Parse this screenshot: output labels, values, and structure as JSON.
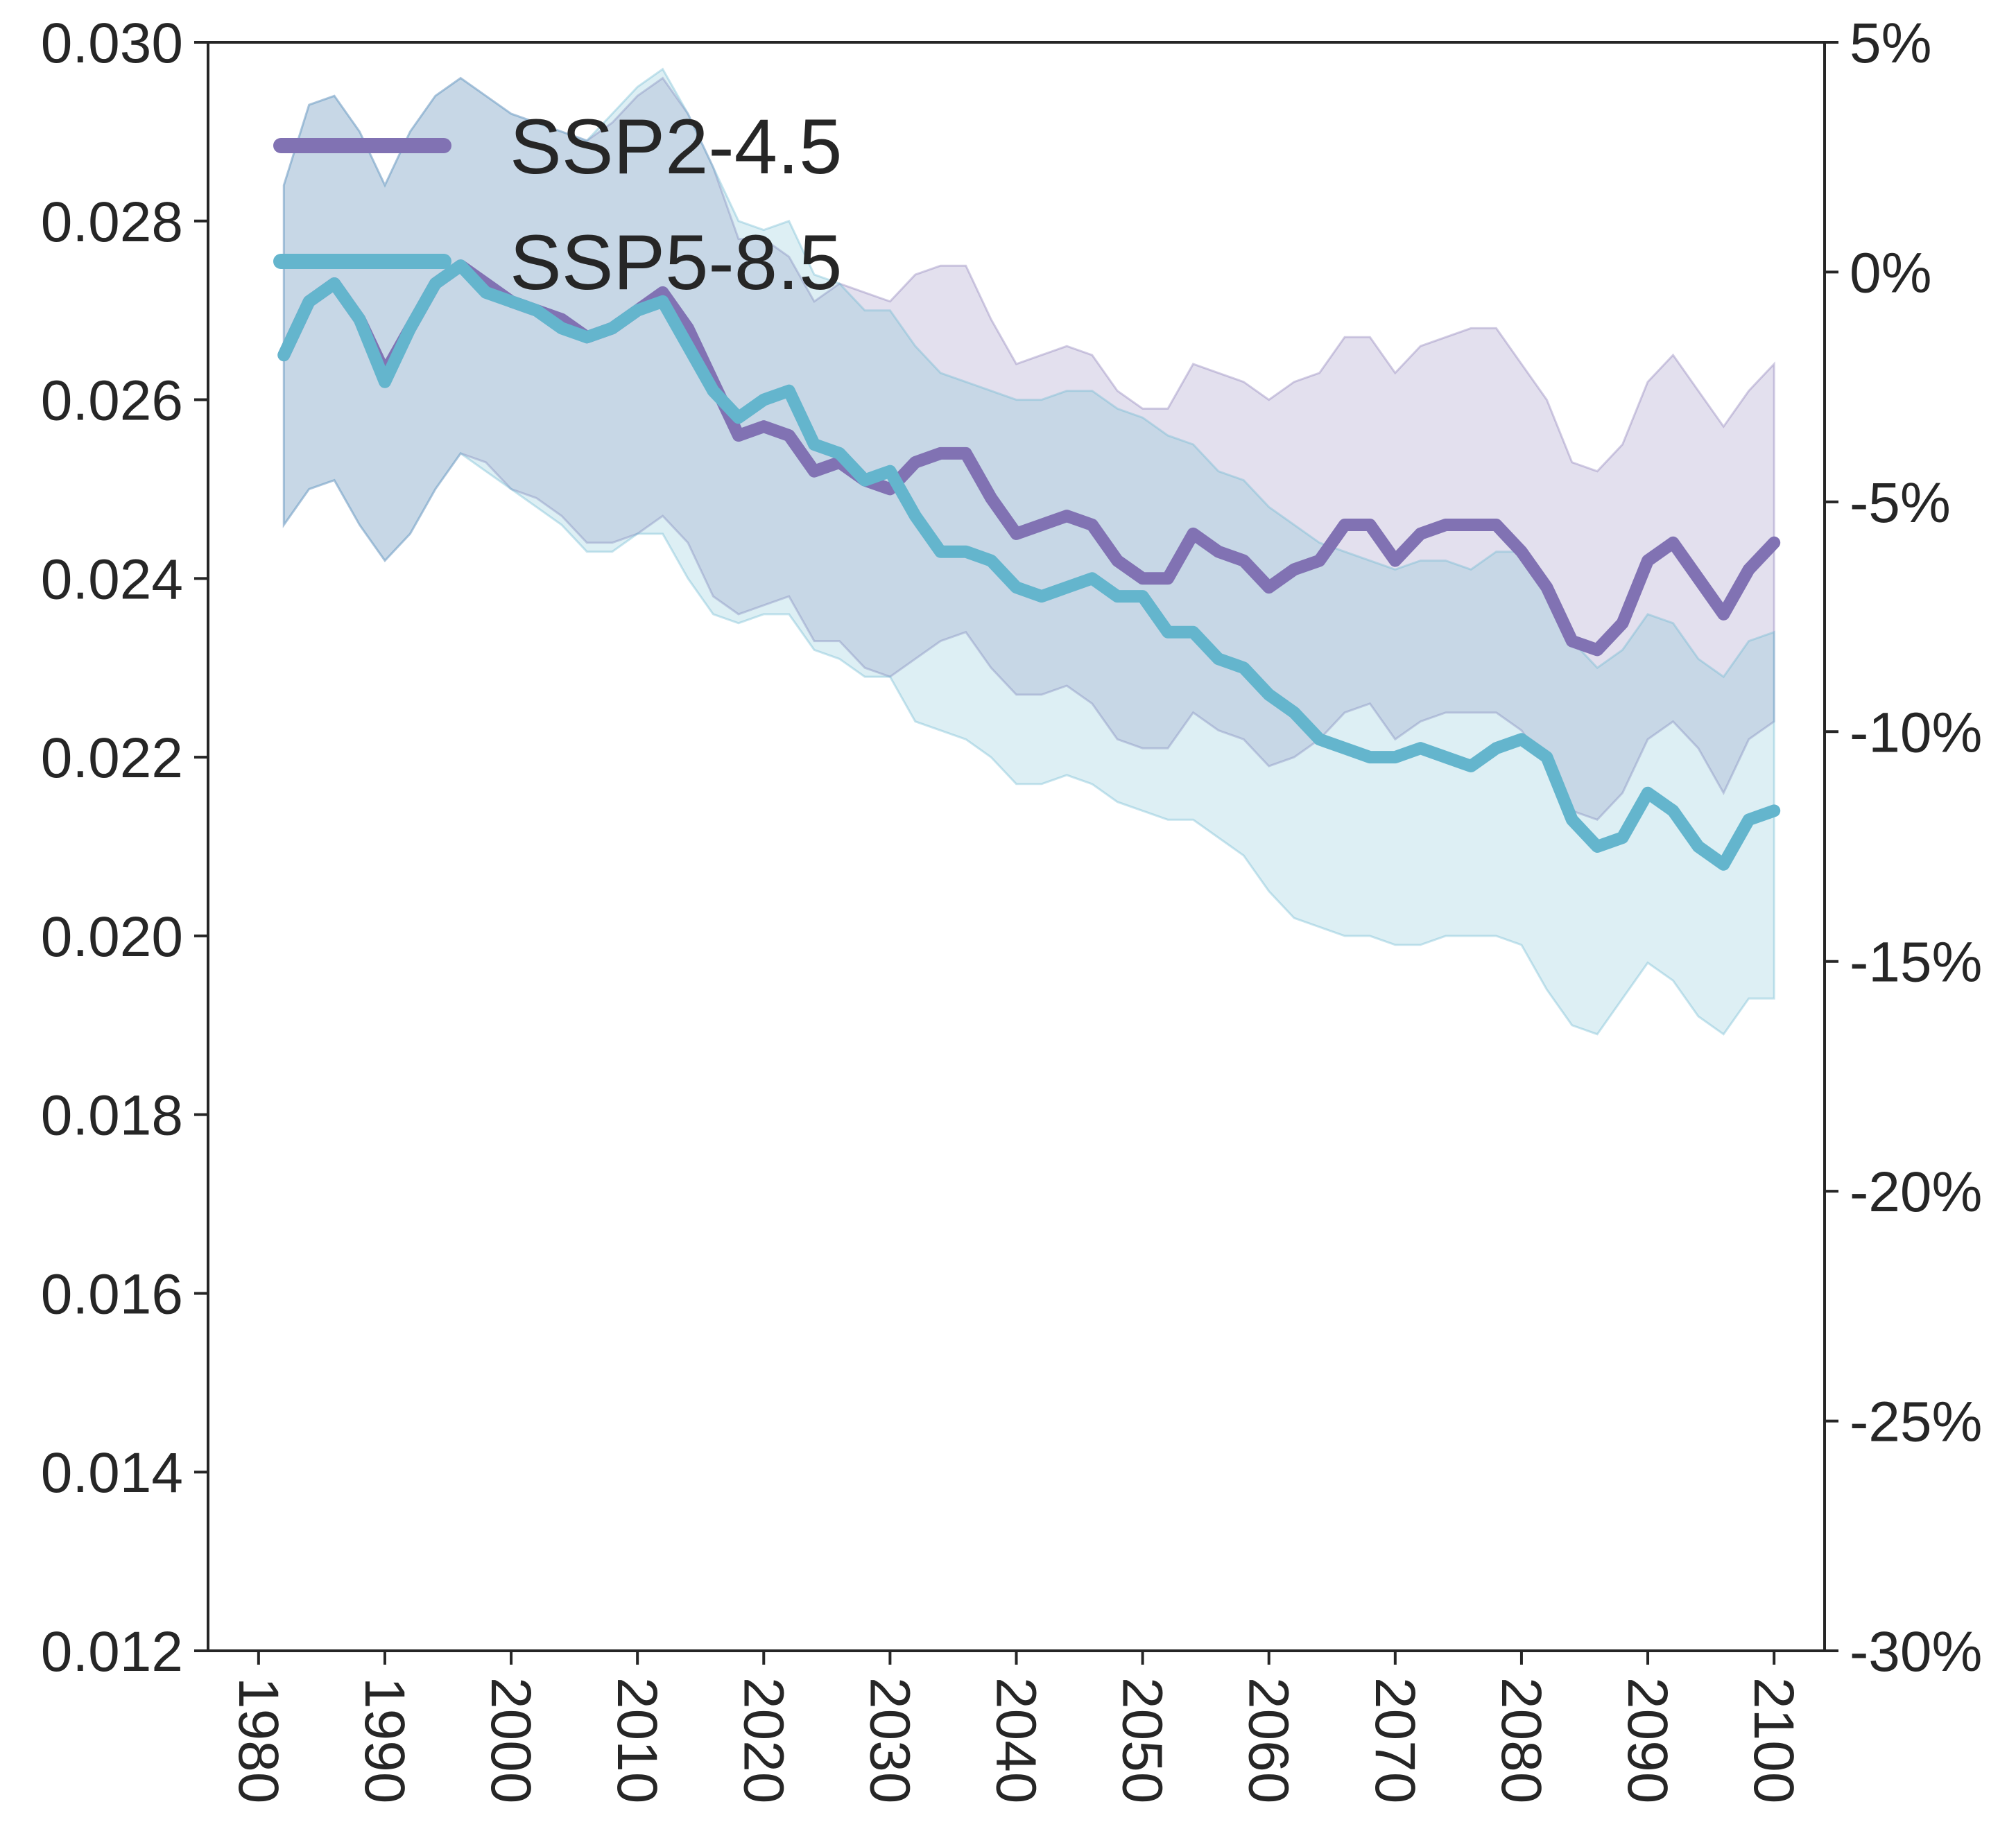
{
  "chart_data": {
    "type": "line",
    "xlim": [
      1976,
      2104
    ],
    "ylim": [
      0.012,
      0.03
    ],
    "y2lim": [
      -30,
      5
    ],
    "grid": false,
    "legend": "top-left",
    "x_ticks": [
      1980,
      1990,
      2000,
      2010,
      2020,
      2030,
      2040,
      2050,
      2060,
      2070,
      2080,
      2090,
      2100
    ],
    "x_tick_labels": [
      "1980",
      "1990",
      "2000",
      "2010",
      "2020",
      "2030",
      "2040",
      "2050",
      "2060",
      "2070",
      "2080",
      "2090",
      "2100"
    ],
    "y_ticks": [
      0.012,
      0.014,
      0.016,
      0.018,
      0.02,
      0.022,
      0.024,
      0.026,
      0.028,
      0.03
    ],
    "y_tick_labels": [
      "0.012",
      "0.014",
      "0.016",
      "0.018",
      "0.020",
      "0.022",
      "0.024",
      "0.026",
      "0.028",
      "0.030"
    ],
    "y2_ticks": [
      -30,
      -25,
      -20,
      -15,
      -10,
      -5,
      0,
      5
    ],
    "y2_tick_labels": [
      "-30%",
      "-25%",
      "-20%",
      "-15%",
      "-10%",
      "-5%",
      "0%",
      "5%"
    ],
    "series": [
      {
        "name": "SSP2-4.5",
        "color": "#8172b3",
        "x": [
          1982,
          1984,
          1986,
          1988,
          1990,
          1992,
          1994,
          1996,
          1998,
          2000,
          2002,
          2004,
          2006,
          2008,
          2010,
          2012,
          2014,
          2016,
          2018,
          2020,
          2022,
          2024,
          2026,
          2028,
          2030,
          2032,
          2034,
          2036,
          2038,
          2040,
          2042,
          2044,
          2046,
          2048,
          2050,
          2052,
          2054,
          2056,
          2058,
          2060,
          2062,
          2064,
          2066,
          2068,
          2070,
          2072,
          2074,
          2076,
          2078,
          2080,
          2082,
          2084,
          2086,
          2088,
          2090,
          2092,
          2094,
          2096,
          2098,
          2100
        ],
        "values": [
          0.0265,
          0.0271,
          0.0273,
          0.0269,
          0.0263,
          0.0268,
          0.0273,
          0.0275,
          0.0273,
          0.0271,
          0.027,
          0.0269,
          0.0267,
          0.0268,
          0.027,
          0.0272,
          0.0268,
          0.0262,
          0.0256,
          0.0257,
          0.0256,
          0.0252,
          0.0253,
          0.0251,
          0.025,
          0.0253,
          0.0254,
          0.0254,
          0.0249,
          0.0245,
          0.0246,
          0.0247,
          0.0246,
          0.0242,
          0.024,
          0.024,
          0.0245,
          0.0243,
          0.0242,
          0.0239,
          0.0241,
          0.0242,
          0.0246,
          0.0246,
          0.0242,
          0.0245,
          0.0246,
          0.0246,
          0.0246,
          0.0243,
          0.0239,
          0.0233,
          0.0232,
          0.0235,
          0.0242,
          0.0244,
          0.024,
          0.0236,
          0.0241,
          0.0244
        ],
        "lower": [
          0.0246,
          0.025,
          0.0251,
          0.0246,
          0.0242,
          0.0245,
          0.025,
          0.0254,
          0.0253,
          0.025,
          0.0249,
          0.0247,
          0.0244,
          0.0244,
          0.0245,
          0.0247,
          0.0244,
          0.0238,
          0.0236,
          0.0237,
          0.0238,
          0.0233,
          0.0233,
          0.023,
          0.0229,
          0.0231,
          0.0233,
          0.0234,
          0.023,
          0.0227,
          0.0227,
          0.0228,
          0.0226,
          0.0222,
          0.0221,
          0.0221,
          0.0225,
          0.0223,
          0.0222,
          0.0219,
          0.022,
          0.0222,
          0.0225,
          0.0226,
          0.0222,
          0.0224,
          0.0225,
          0.0225,
          0.0225,
          0.0223,
          0.0219,
          0.0214,
          0.0213,
          0.0216,
          0.0222,
          0.0224,
          0.0221,
          0.0216,
          0.0222,
          0.0224
        ],
        "upper": [
          0.0284,
          0.0293,
          0.0294,
          0.029,
          0.0284,
          0.029,
          0.0294,
          0.0296,
          0.0294,
          0.0292,
          0.0291,
          0.029,
          0.0289,
          0.0291,
          0.0294,
          0.0296,
          0.0292,
          0.0286,
          0.0278,
          0.0278,
          0.0276,
          0.0271,
          0.0273,
          0.0272,
          0.0271,
          0.0274,
          0.0275,
          0.0275,
          0.0269,
          0.0264,
          0.0265,
          0.0266,
          0.0265,
          0.0261,
          0.0259,
          0.0259,
          0.0264,
          0.0263,
          0.0262,
          0.026,
          0.0262,
          0.0263,
          0.0267,
          0.0267,
          0.0263,
          0.0266,
          0.0267,
          0.0268,
          0.0268,
          0.0264,
          0.026,
          0.0253,
          0.0252,
          0.0255,
          0.0262,
          0.0265,
          0.0261,
          0.0257,
          0.0261,
          0.0264
        ]
      },
      {
        "name": "SSP5-8.5",
        "color": "#64b5cd",
        "x": [
          1982,
          1984,
          1986,
          1988,
          1990,
          1992,
          1994,
          1996,
          1998,
          2000,
          2002,
          2004,
          2006,
          2008,
          2010,
          2012,
          2014,
          2016,
          2018,
          2020,
          2022,
          2024,
          2026,
          2028,
          2030,
          2032,
          2034,
          2036,
          2038,
          2040,
          2042,
          2044,
          2046,
          2048,
          2050,
          2052,
          2054,
          2056,
          2058,
          2060,
          2062,
          2064,
          2066,
          2068,
          2070,
          2072,
          2074,
          2076,
          2078,
          2080,
          2082,
          2084,
          2086,
          2088,
          2090,
          2092,
          2094,
          2096,
          2098,
          2100
        ],
        "values": [
          0.0265,
          0.0271,
          0.0273,
          0.0269,
          0.0262,
          0.0268,
          0.0273,
          0.0275,
          0.0272,
          0.0271,
          0.027,
          0.0268,
          0.0267,
          0.0268,
          0.027,
          0.0271,
          0.0266,
          0.0261,
          0.0258,
          0.026,
          0.0261,
          0.0255,
          0.0254,
          0.0251,
          0.0252,
          0.0247,
          0.0243,
          0.0243,
          0.0242,
          0.0239,
          0.0238,
          0.0239,
          0.024,
          0.0238,
          0.0238,
          0.0234,
          0.0234,
          0.0231,
          0.023,
          0.0227,
          0.0225,
          0.0222,
          0.0221,
          0.022,
          0.022,
          0.0221,
          0.022,
          0.0219,
          0.0221,
          0.0222,
          0.022,
          0.0213,
          0.021,
          0.0211,
          0.0216,
          0.0214,
          0.021,
          0.0208,
          0.0213,
          0.0214
        ],
        "lower": [
          0.0246,
          0.025,
          0.0251,
          0.0246,
          0.0242,
          0.0245,
          0.025,
          0.0254,
          0.0252,
          0.025,
          0.0248,
          0.0246,
          0.0243,
          0.0243,
          0.0245,
          0.0245,
          0.024,
          0.0236,
          0.0235,
          0.0236,
          0.0236,
          0.0232,
          0.0231,
          0.0229,
          0.0229,
          0.0224,
          0.0223,
          0.0222,
          0.022,
          0.0217,
          0.0217,
          0.0218,
          0.0217,
          0.0215,
          0.0214,
          0.0213,
          0.0213,
          0.0211,
          0.0209,
          0.0205,
          0.0202,
          0.0201,
          0.02,
          0.02,
          0.0199,
          0.0199,
          0.02,
          0.02,
          0.02,
          0.0199,
          0.0194,
          0.019,
          0.0189,
          0.0193,
          0.0197,
          0.0195,
          0.0191,
          0.0189,
          0.0193,
          0.0193
        ],
        "upper": [
          0.0284,
          0.0293,
          0.0294,
          0.029,
          0.0284,
          0.029,
          0.0294,
          0.0296,
          0.0294,
          0.0292,
          0.0291,
          0.029,
          0.0289,
          0.0292,
          0.0295,
          0.0297,
          0.0292,
          0.0286,
          0.028,
          0.0279,
          0.028,
          0.0274,
          0.0273,
          0.027,
          0.027,
          0.0266,
          0.0263,
          0.0262,
          0.0261,
          0.026,
          0.026,
          0.0261,
          0.0261,
          0.0259,
          0.0258,
          0.0256,
          0.0255,
          0.0252,
          0.0251,
          0.0248,
          0.0246,
          0.0244,
          0.0243,
          0.0242,
          0.0241,
          0.0242,
          0.0242,
          0.0241,
          0.0243,
          0.0243,
          0.024,
          0.0233,
          0.023,
          0.0232,
          0.0236,
          0.0235,
          0.0231,
          0.0229,
          0.0233,
          0.0234
        ]
      }
    ]
  }
}
